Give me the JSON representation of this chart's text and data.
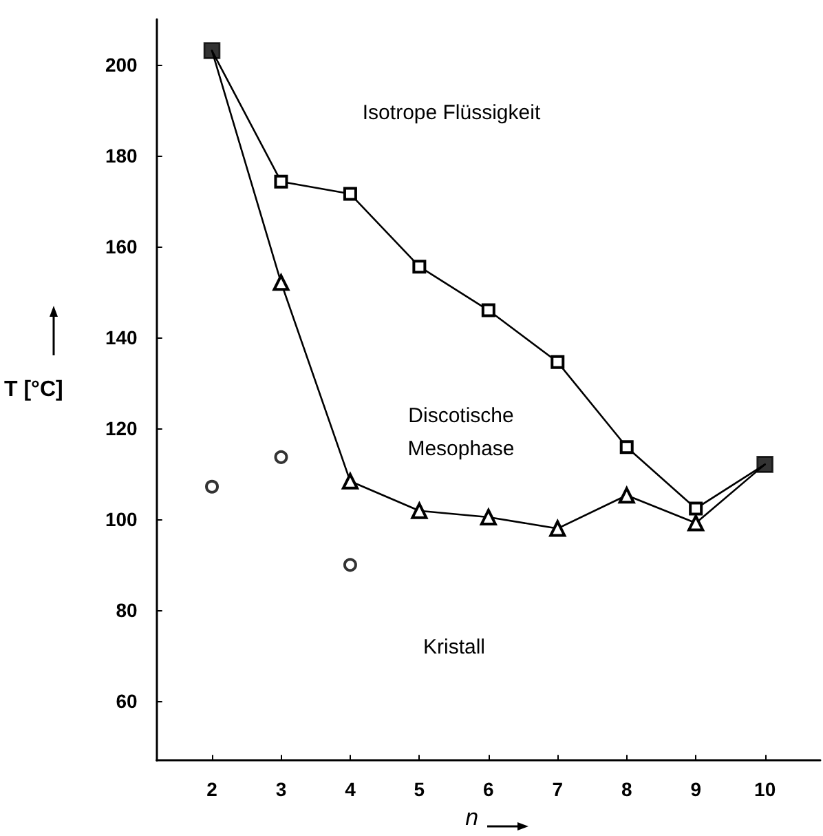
{
  "chart_data": {
    "type": "line",
    "xlabel": "n",
    "ylabel": "T [°C]",
    "xlim": [
      1.2,
      10.8
    ],
    "xticks": [
      2,
      3,
      4,
      5,
      6,
      7,
      8,
      9,
      10
    ],
    "ylim": [
      47,
      210
    ],
    "yticks": [
      60,
      80,
      100,
      120,
      140,
      160,
      180,
      200
    ],
    "grid": false,
    "series": [
      {
        "type": "line",
        "marker": "square",
        "color": "#000000",
        "x": [
          2,
          3,
          4,
          5,
          6,
          7,
          8,
          9,
          10
        ],
        "values": [
          203.1,
          174.3,
          171.6,
          155.6,
          146.0,
          134.6,
          115.9,
          102.4,
          112.1
        ]
      },
      {
        "type": "line",
        "marker": "triangle",
        "color": "#000000",
        "x": [
          2,
          3,
          4,
          5,
          6,
          7,
          8,
          9,
          10
        ],
        "values": [
          203.1,
          152.1,
          108.4,
          101.9,
          100.5,
          98.0,
          105.3,
          99.2,
          112.1
        ]
      },
      {
        "type": "scatter",
        "marker": "circle",
        "color": "#000000",
        "x": [
          2,
          3,
          4
        ],
        "values": [
          107.2,
          113.7,
          90.0
        ]
      },
      {
        "type": "scatter",
        "marker": "square",
        "color": "#000000",
        "x": [
          2,
          10
        ],
        "values": [
          203.1,
          112.1
        ]
      }
    ],
    "annotations": [
      "Isotrope Flüssigkeit",
      "Discotische\nMesophase",
      "Kristall"
    ]
  }
}
